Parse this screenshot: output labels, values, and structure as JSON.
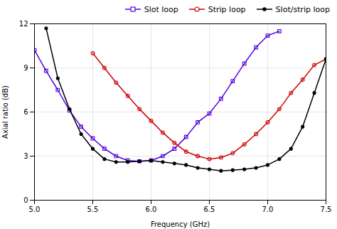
{
  "chart_data": {
    "type": "line",
    "xlabel": "Frequency (GHz)",
    "ylabel": "Axial ratio (dB)",
    "xlim": [
      5.0,
      7.5
    ],
    "ylim": [
      0,
      12
    ],
    "xticks": [
      {
        "value": 5.0,
        "label": "5.0"
      },
      {
        "value": 5.5,
        "label": "5.5"
      },
      {
        "value": 6.0,
        "label": "6.0"
      },
      {
        "value": 6.5,
        "label": "6.5"
      },
      {
        "value": 7.0,
        "label": "7.0"
      },
      {
        "value": 7.5,
        "label": "7.5"
      }
    ],
    "yticks": [
      0,
      3,
      6,
      9,
      12
    ],
    "grid": true,
    "legend": "upper right",
    "series": [
      {
        "name": "Slot loop",
        "color": "#5500dd",
        "marker": "square",
        "x": [
          5.0,
          5.1,
          5.2,
          5.3,
          5.4,
          5.5,
          5.6,
          5.7,
          5.8,
          5.9,
          6.0,
          6.1,
          6.2,
          6.3,
          6.4,
          6.5,
          6.6,
          6.7,
          6.8,
          6.9,
          7.0,
          7.1
        ],
        "values": [
          10.2,
          8.8,
          7.5,
          6.1,
          5.0,
          4.2,
          3.5,
          3.0,
          2.7,
          2.65,
          2.7,
          3.0,
          3.5,
          4.3,
          5.3,
          5.9,
          6.9,
          8.1,
          9.3,
          10.4,
          11.2,
          11.5
        ]
      },
      {
        "name": "Strip loop",
        "color": "#cc0000",
        "marker": "circle",
        "x": [
          5.5,
          5.6,
          5.7,
          5.8,
          5.9,
          6.0,
          6.1,
          6.2,
          6.3,
          6.4,
          6.5,
          6.6,
          6.7,
          6.8,
          6.9,
          7.0,
          7.1,
          7.2,
          7.3,
          7.4,
          7.5
        ],
        "values": [
          10.0,
          9.0,
          8.0,
          7.1,
          6.2,
          5.4,
          4.6,
          3.9,
          3.3,
          3.0,
          2.8,
          2.9,
          3.2,
          3.8,
          4.5,
          5.3,
          6.2,
          7.3,
          8.2,
          9.2,
          9.6
        ]
      },
      {
        "name": "Slot/strip loop",
        "color": "#000000",
        "marker": "point",
        "x": [
          5.1,
          5.2,
          5.3,
          5.4,
          5.5,
          5.6,
          5.7,
          5.8,
          5.9,
          6.0,
          6.1,
          6.2,
          6.3,
          6.4,
          6.5,
          6.6,
          6.7,
          6.8,
          6.9,
          7.0,
          7.1,
          7.2,
          7.3,
          7.4,
          7.5
        ],
        "values": [
          11.7,
          8.3,
          6.2,
          4.5,
          3.5,
          2.8,
          2.6,
          2.6,
          2.65,
          2.7,
          2.6,
          2.5,
          2.4,
          2.2,
          2.1,
          2.0,
          2.05,
          2.1,
          2.2,
          2.4,
          2.8,
          3.5,
          5.0,
          7.3,
          9.6
        ]
      }
    ]
  }
}
